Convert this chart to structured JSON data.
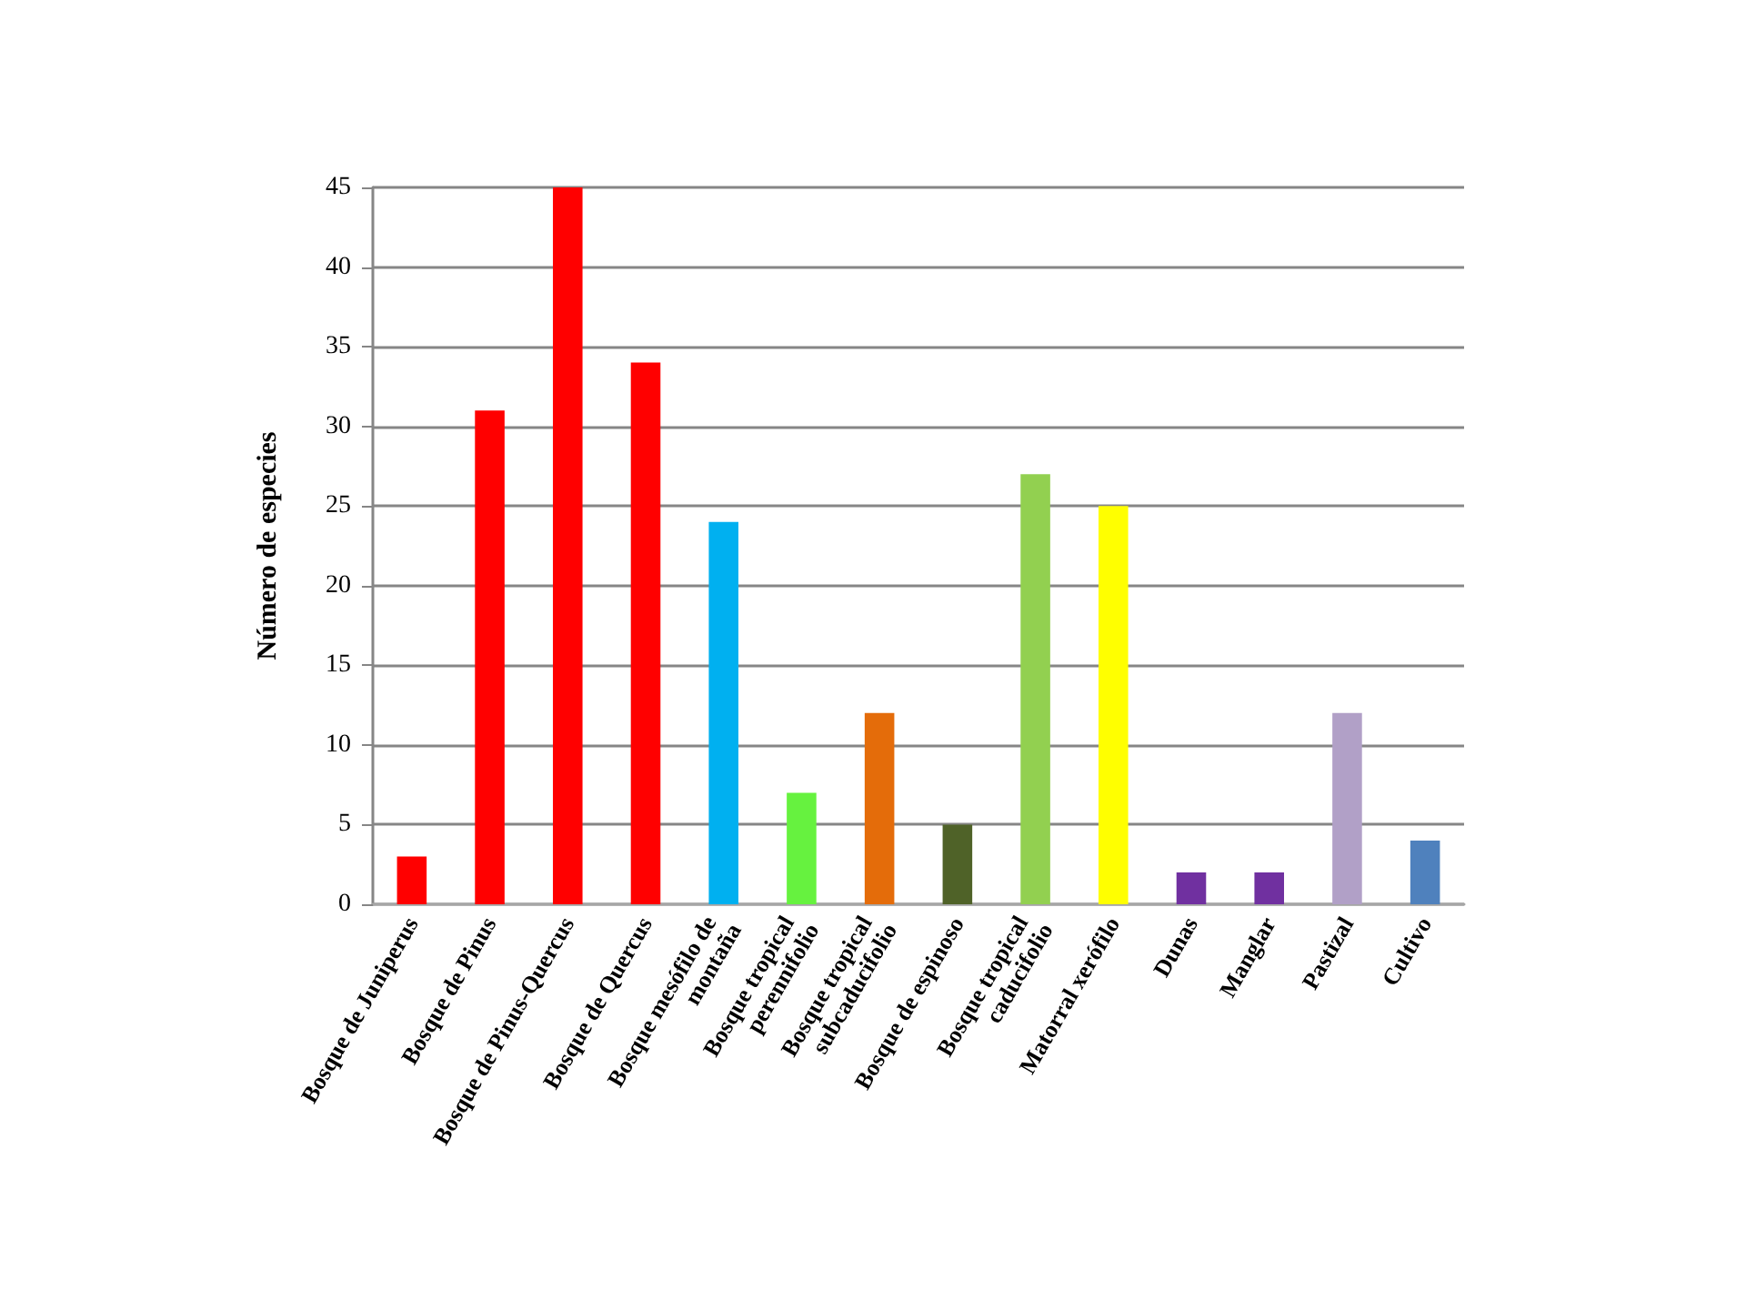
{
  "chart_data": {
    "type": "bar",
    "ylabel": "Número de especies",
    "categories": [
      "Bosque de Juniperus",
      "Bosque de Pinus",
      "Bosque de Pinus-Quercus",
      "Bosque de Quercus",
      "Bosque mesófilo de montaña",
      "Bosque tropical perennifolio",
      "Bosque tropical subcaducifolio",
      "Bosque de espinoso",
      "Bosque tropical caducifolio",
      "Matorral xerófilo",
      "Dunas",
      "Manglar",
      "Pastizal",
      "Cultivo"
    ],
    "values": [
      3,
      31,
      45,
      34,
      24,
      7,
      12,
      5,
      27,
      25,
      2,
      2,
      12,
      4
    ],
    "colors": [
      "#ff0000",
      "#ff0000",
      "#ff0000",
      "#ff0000",
      "#00b0f0",
      "#66f23f",
      "#e46c0a",
      "#4f6228",
      "#92d050",
      "#ffff00",
      "#7030a0",
      "#7030a0",
      "#b1a0c7",
      "#4f81bd"
    ],
    "ylim": [
      0,
      45
    ],
    "yticks": [
      0,
      5,
      10,
      15,
      20,
      25,
      30,
      35,
      40,
      45
    ],
    "grid": "y"
  }
}
